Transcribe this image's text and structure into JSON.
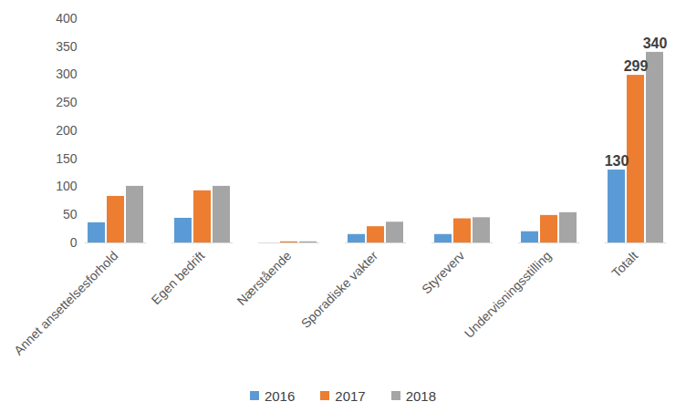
{
  "chart_data": {
    "type": "bar",
    "categories": [
      "Annet ansettelsesforhold",
      "Egen bedrift",
      "Nærstående",
      "Sporadiske vakter",
      "Styreverv",
      "Undervisningsstilling",
      "Totalt"
    ],
    "series": [
      {
        "name": "2016",
        "color": "#5B9BD5",
        "values": [
          36,
          44,
          0,
          15,
          15,
          20,
          130
        ],
        "value_labels": [
          null,
          null,
          null,
          null,
          null,
          null,
          "130"
        ]
      },
      {
        "name": "2017",
        "color": "#ED7D31",
        "values": [
          83,
          93,
          2,
          29,
          43,
          49,
          299
        ],
        "value_labels": [
          null,
          null,
          null,
          null,
          null,
          null,
          "299"
        ]
      },
      {
        "name": "2018",
        "color": "#A5A5A5",
        "values": [
          101,
          101,
          2,
          37,
          45,
          54,
          340
        ],
        "value_labels": [
          null,
          null,
          null,
          null,
          null,
          null,
          "340"
        ]
      }
    ],
    "ylim": [
      0,
      400
    ],
    "yticks": [
      0,
      50,
      100,
      150,
      200,
      250,
      300,
      350,
      400
    ],
    "grid": false,
    "legend": "bottom"
  }
}
